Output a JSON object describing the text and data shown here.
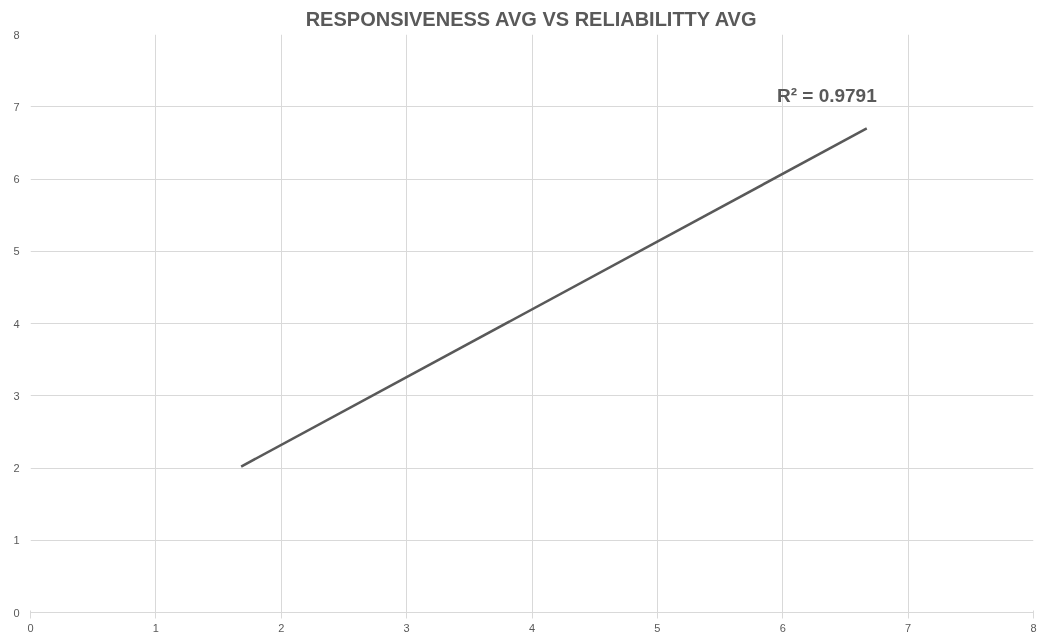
{
  "chart_data": {
    "type": "line",
    "title": "RESPONSIVENESS AVG VS RELIABILITTY AVG",
    "series": [
      {
        "color": "#595959",
        "x": [
          1.68,
          6.67
        ],
        "values": [
          2.02,
          6.7
        ]
      }
    ],
    "xlim": [
      0,
      8
    ],
    "xticks": [
      0,
      1,
      2,
      3,
      4,
      5,
      6,
      7,
      8
    ],
    "ylim": [
      0,
      8
    ],
    "yticks": [
      0,
      1,
      2,
      3,
      4,
      5,
      6,
      7,
      8
    ],
    "grid": true,
    "marker": "none",
    "line_style": "solid",
    "annotations": [
      "R² = 0.9791"
    ]
  }
}
